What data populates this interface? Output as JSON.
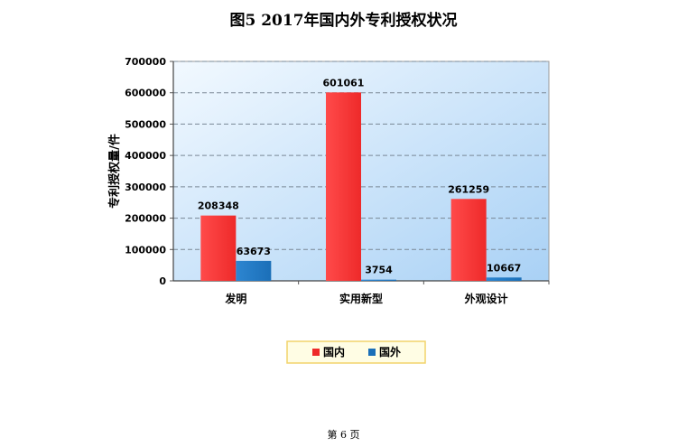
{
  "figure_title": "图5   2017年国内外专利授权状况",
  "page_number": "第 6 页",
  "colors": {
    "domestic": "#ee2a2a",
    "foreign": "#1b6fb8",
    "plot_bg_light": "#f2f9ff",
    "plot_bg_dark": "#a9d1f5",
    "legend_bg": "#fffde4",
    "legend_border": "#f2d36b"
  },
  "chart_data": {
    "type": "bar",
    "title": "",
    "xlabel": "",
    "ylabel": "专利授权量/件",
    "categories": [
      "发明",
      "实用新型",
      "外观设计"
    ],
    "series": [
      {
        "name": "国内",
        "values": [
          208348,
          601061,
          261259
        ]
      },
      {
        "name": "国外",
        "values": [
          63673,
          3754,
          10667
        ]
      }
    ],
    "ylim": [
      0,
      700000
    ],
    "yticks": [
      "0",
      "100000",
      "200000",
      "300000",
      "400000",
      "500000",
      "600000",
      "700000"
    ],
    "grid": true,
    "grid_style": "dashed",
    "legend_position": "bottom",
    "data_labels": true
  }
}
